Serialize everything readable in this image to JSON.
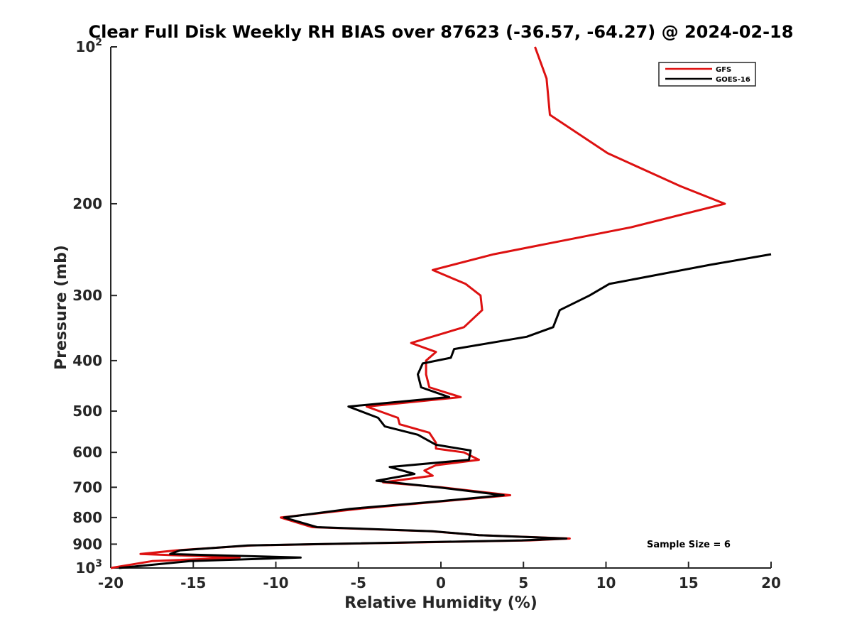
{
  "chart_data": {
    "type": "line",
    "title": "Clear Full Disk Weekly RH BIAS over 87623 (-36.57, -64.27) @ 2024-02-18",
    "xlabel": "Relative Humidity (%)",
    "ylabel": "Pressure (mb)",
    "xlim": [
      -20,
      20
    ],
    "ylim": [
      100,
      1000
    ],
    "y_scale": "log",
    "y_reversed": true,
    "grid": false,
    "legend_position": "top-right",
    "x_ticks": [
      "-20",
      "-15",
      "-10",
      "-5",
      "0",
      "5",
      "10",
      "15",
      "20"
    ],
    "y_ticks": [
      {
        "value": 100,
        "base": "10",
        "exp": "2"
      },
      {
        "value": 200,
        "base": "200",
        "exp": ""
      },
      {
        "value": 300,
        "base": "300",
        "exp": ""
      },
      {
        "value": 400,
        "base": "400",
        "exp": ""
      },
      {
        "value": 500,
        "base": "500",
        "exp": ""
      },
      {
        "value": 600,
        "base": "600",
        "exp": ""
      },
      {
        "value": 700,
        "base": "700",
        "exp": ""
      },
      {
        "value": 800,
        "base": "800",
        "exp": ""
      },
      {
        "value": 900,
        "base": "900",
        "exp": ""
      },
      {
        "value": 1000,
        "base": "10",
        "exp": "3"
      }
    ],
    "annotation": "Sample Size = 6",
    "series": [
      {
        "name": "GFS",
        "color": "#dd1111",
        "points": [
          [
            5.7,
            100
          ],
          [
            6.4,
            115
          ],
          [
            6.6,
            135
          ],
          [
            10.1,
            160
          ],
          [
            14.5,
            185
          ],
          [
            17.2,
            200
          ],
          [
            11.5,
            222
          ],
          [
            3.2,
            250
          ],
          [
            -0.5,
            268
          ],
          [
            1.5,
            285
          ],
          [
            2.4,
            300
          ],
          [
            2.5,
            320
          ],
          [
            1.4,
            345
          ],
          [
            -1.8,
            370
          ],
          [
            -0.3,
            385
          ],
          [
            -0.9,
            400
          ],
          [
            -0.9,
            425
          ],
          [
            -0.7,
            450
          ],
          [
            1.2,
            470
          ],
          [
            -4.5,
            490
          ],
          [
            -2.6,
            515
          ],
          [
            -2.5,
            530
          ],
          [
            -0.7,
            550
          ],
          [
            -0.3,
            575
          ],
          [
            -0.3,
            590
          ],
          [
            1.4,
            600
          ],
          [
            2.3,
            620
          ],
          [
            -0.3,
            635
          ],
          [
            -1.0,
            650
          ],
          [
            -0.5,
            665
          ],
          [
            -3.5,
            685
          ],
          [
            0.0,
            700
          ],
          [
            4.2,
            725
          ],
          [
            0.0,
            745
          ],
          [
            -5.0,
            770
          ],
          [
            -9.7,
            800
          ],
          [
            -7.8,
            835
          ],
          [
            -0.6,
            850
          ],
          [
            2.3,
            865
          ],
          [
            7.8,
            878
          ],
          [
            5.4,
            885
          ],
          [
            -11.5,
            905
          ],
          [
            -16.0,
            925
          ],
          [
            -18.2,
            940
          ],
          [
            -12.2,
            955
          ],
          [
            -17.5,
            970
          ],
          [
            -20.0,
            1000
          ]
        ]
      },
      {
        "name": "GOES-16",
        "color": "#000000",
        "points": [
          [
            20.0,
            250
          ],
          [
            16.3,
            262
          ],
          [
            10.2,
            285
          ],
          [
            9.0,
            300
          ],
          [
            7.2,
            320
          ],
          [
            6.8,
            345
          ],
          [
            5.2,
            360
          ],
          [
            0.8,
            380
          ],
          [
            0.6,
            395
          ],
          [
            -1.1,
            405
          ],
          [
            -1.4,
            425
          ],
          [
            -1.2,
            450
          ],
          [
            0.5,
            470
          ],
          [
            -5.6,
            490
          ],
          [
            -3.8,
            515
          ],
          [
            -3.4,
            535
          ],
          [
            -1.4,
            555
          ],
          [
            -0.3,
            580
          ],
          [
            1.8,
            595
          ],
          [
            1.7,
            620
          ],
          [
            -3.1,
            640
          ],
          [
            -1.6,
            660
          ],
          [
            -3.9,
            680
          ],
          [
            -0.2,
            700
          ],
          [
            3.8,
            725
          ],
          [
            -0.2,
            745
          ],
          [
            -5.5,
            770
          ],
          [
            -9.5,
            800
          ],
          [
            -7.5,
            835
          ],
          [
            -0.5,
            850
          ],
          [
            2.3,
            865
          ],
          [
            7.6,
            878
          ],
          [
            4.9,
            885
          ],
          [
            -11.7,
            905
          ],
          [
            -15.8,
            925
          ],
          [
            -16.4,
            940
          ],
          [
            -8.5,
            955
          ],
          [
            -15.2,
            970
          ],
          [
            -19.5,
            1000
          ]
        ]
      }
    ]
  }
}
